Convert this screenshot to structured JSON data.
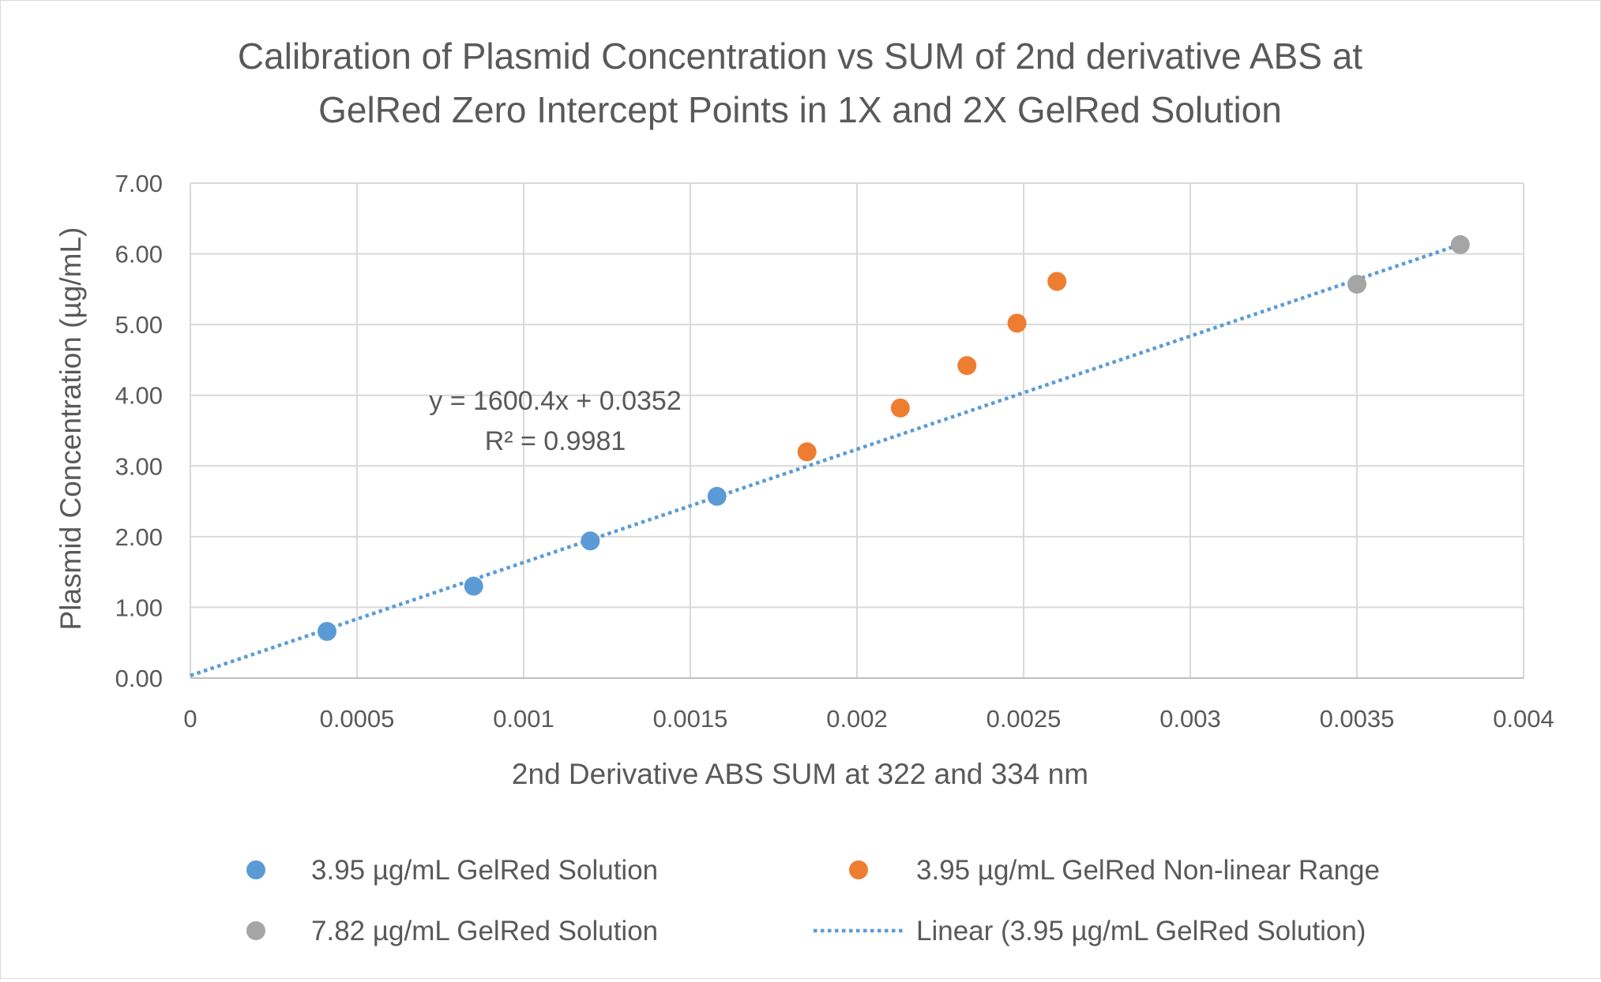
{
  "chart_data": {
    "type": "scatter",
    "title_lines": [
      "Calibration of Plasmid Concentration vs SUM of 2nd derivative ABS at",
      "GelRed Zero Intercept Points in 1X and 2X GelRed Solution"
    ],
    "xlabel": "2nd Derivative ABS SUM at 322 and 334 nm",
    "ylabel": "Plasmid Concentration (µg/mL)",
    "xlim": [
      0,
      0.004
    ],
    "ylim": [
      0,
      7
    ],
    "x_ticks": [
      0,
      0.0005,
      0.001,
      0.0015,
      0.002,
      0.0025,
      0.003,
      0.0035,
      0.004
    ],
    "x_tick_labels": [
      "0",
      "0.0005",
      "0.001",
      "0.0015",
      "0.002",
      "0.0025",
      "0.003",
      "0.0035",
      "0.004"
    ],
    "y_ticks": [
      0,
      1,
      2,
      3,
      4,
      5,
      6,
      7
    ],
    "y_tick_labels": [
      "0.00",
      "1.00",
      "2.00",
      "3.00",
      "4.00",
      "5.00",
      "6.00",
      "7.00"
    ],
    "grid": true,
    "legend_position": "bottom",
    "series": [
      {
        "name": "3.95 µg/mL GelRed Solution",
        "color": "#5b9bd5",
        "x": [
          0.00041,
          0.00085,
          0.0012,
          0.00158
        ],
        "y": [
          0.66,
          1.3,
          1.94,
          2.57
        ]
      },
      {
        "name": "3.95 µg/mL GelRed Non-linear Range",
        "color": "#ed7d31",
        "x": [
          0.00185,
          0.00213,
          0.00233,
          0.00248,
          0.0026
        ],
        "y": [
          3.2,
          3.82,
          4.42,
          5.02,
          5.61
        ]
      },
      {
        "name": "7.82 µg/mL GelRed Solution",
        "color": "#a5a5a5",
        "x": [
          0.0035,
          0.00381
        ],
        "y": [
          5.57,
          6.13
        ]
      }
    ],
    "trendline": {
      "name": "Linear (3.95 µg/mL GelRed Solution)",
      "color": "#5b9bd5",
      "style": "dotted",
      "slope": 1600.4,
      "intercept": 0.0352,
      "x_range": [
        0,
        0.00381
      ],
      "equation": "y = 1600.4x + 0.0352",
      "r_squared": "R² = 0.9981"
    }
  }
}
